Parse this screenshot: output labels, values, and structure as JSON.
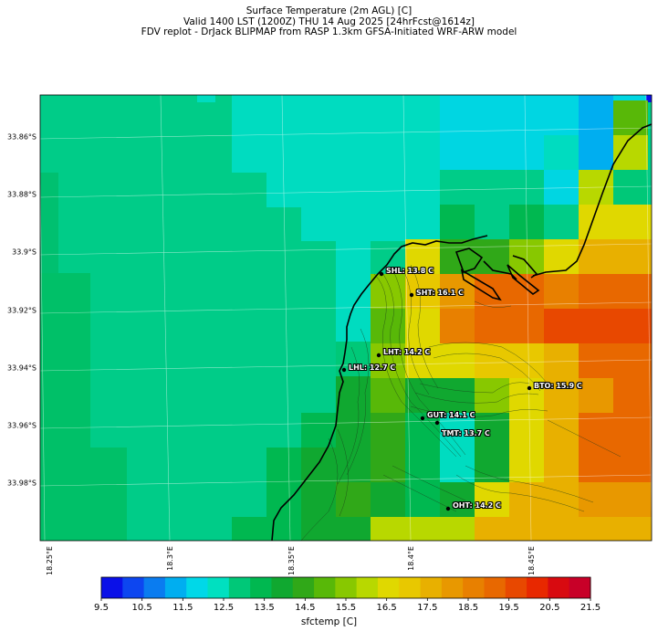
{
  "header": {
    "line1": "Surface Temperature (2m AGL) [C]",
    "line2": "Valid 1400 LST (1200Z) THU 14 Aug 2025 [24hrFcst@1614z]",
    "line3": "FDV replot - DrJack BLIPMAP from RASP 1.3km GFSA-Initiated WRF-ARW model"
  },
  "axes": {
    "lat_labels": [
      "33.86°S",
      "33.88°S",
      "33.9°S",
      "33.92°S",
      "33.94°S",
      "33.96°S",
      "33.98°S"
    ],
    "lon_labels": [
      "18.25°E",
      "18.3°E",
      "18.35°E",
      "18.4°E",
      "18.45°E"
    ]
  },
  "colorbar": {
    "label": "sfctemp [C]",
    "ticks": [
      "9.5",
      "10.5",
      "11.5",
      "12.5",
      "13.5",
      "14.5",
      "15.5",
      "16.5",
      "17.5",
      "18.5",
      "19.5",
      "20.5",
      "21.5"
    ],
    "colors": [
      "#0a10e8",
      "#0d46f0",
      "#0a7cf0",
      "#00aef0",
      "#00d8e8",
      "#00e0c0",
      "#00c878",
      "#00b850",
      "#10a830",
      "#30a818",
      "#58b808",
      "#88c800",
      "#b8d800",
      "#e0d800",
      "#e8c800",
      "#e8b000",
      "#e89800",
      "#e88000",
      "#e86800",
      "#e84800",
      "#e82800",
      "#d80a10",
      "#c80028"
    ]
  },
  "stations": [
    {
      "label": "SHL: 13.8 C"
    },
    {
      "label": "SHT: 16.1 C"
    },
    {
      "label": "LHT: 14.2 C"
    },
    {
      "label": "LHL: 12.7 C"
    },
    {
      "label": "BTO: 15.9 C"
    },
    {
      "label": "GUT: 14.1 C"
    },
    {
      "label": "TMT: 13.7 C"
    },
    {
      "label": "OHT: 14.2 C"
    }
  ]
}
